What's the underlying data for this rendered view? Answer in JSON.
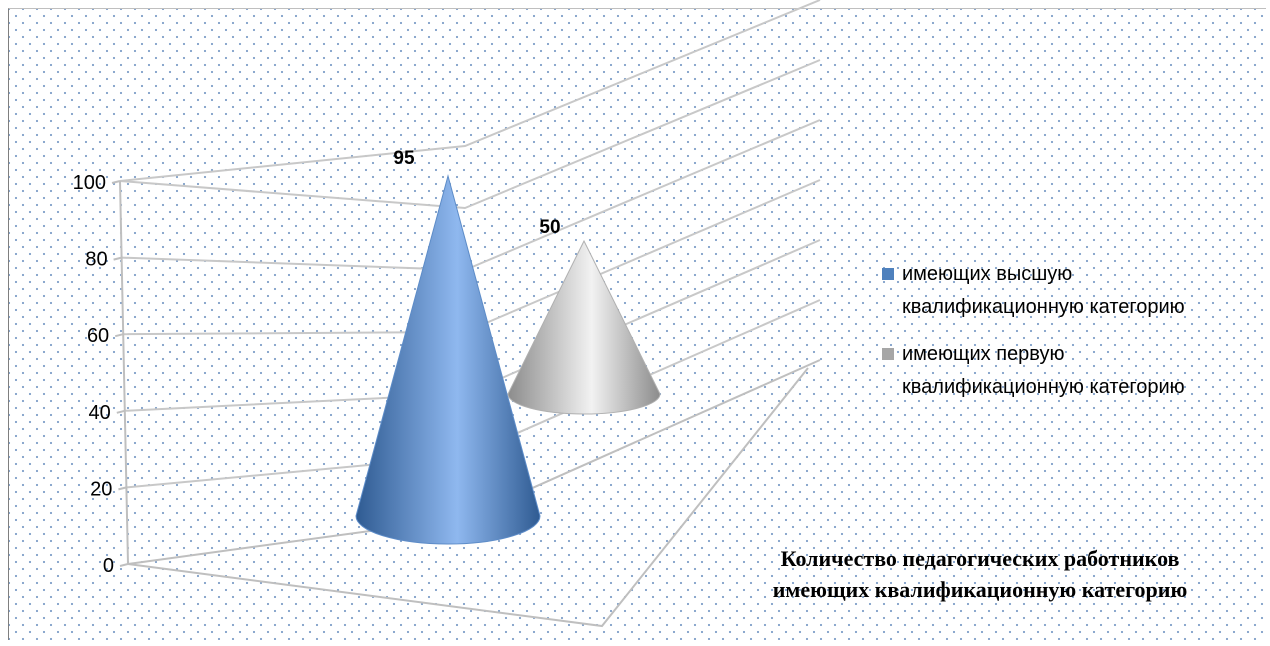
{
  "chart_data": {
    "type": "bar",
    "shape": "cone",
    "title": "Количество педагогических работников имеющих квалификационную категорию",
    "title_lines": [
      "Количество педагогических работников",
      "имеющих квалификационную категорию"
    ],
    "y_ticks": [
      "0",
      "20",
      "40",
      "60",
      "80",
      "100"
    ],
    "ylim": [
      0,
      100
    ],
    "grid": true,
    "legend_position": "right",
    "series": [
      {
        "name": "имеющих высшую квалификационную категорию",
        "name_lines": [
          "имеющих высшую",
          "квалификационную категорию"
        ],
        "value": 95,
        "label": "95",
        "color": "#4f81bd"
      },
      {
        "name": "имеющих первую квалификационную категорию",
        "name_lines": [
          "имеющих первую",
          "квалификационную категорию"
        ],
        "value": 50,
        "label": "50",
        "color": "#a6a6a6"
      }
    ]
  }
}
